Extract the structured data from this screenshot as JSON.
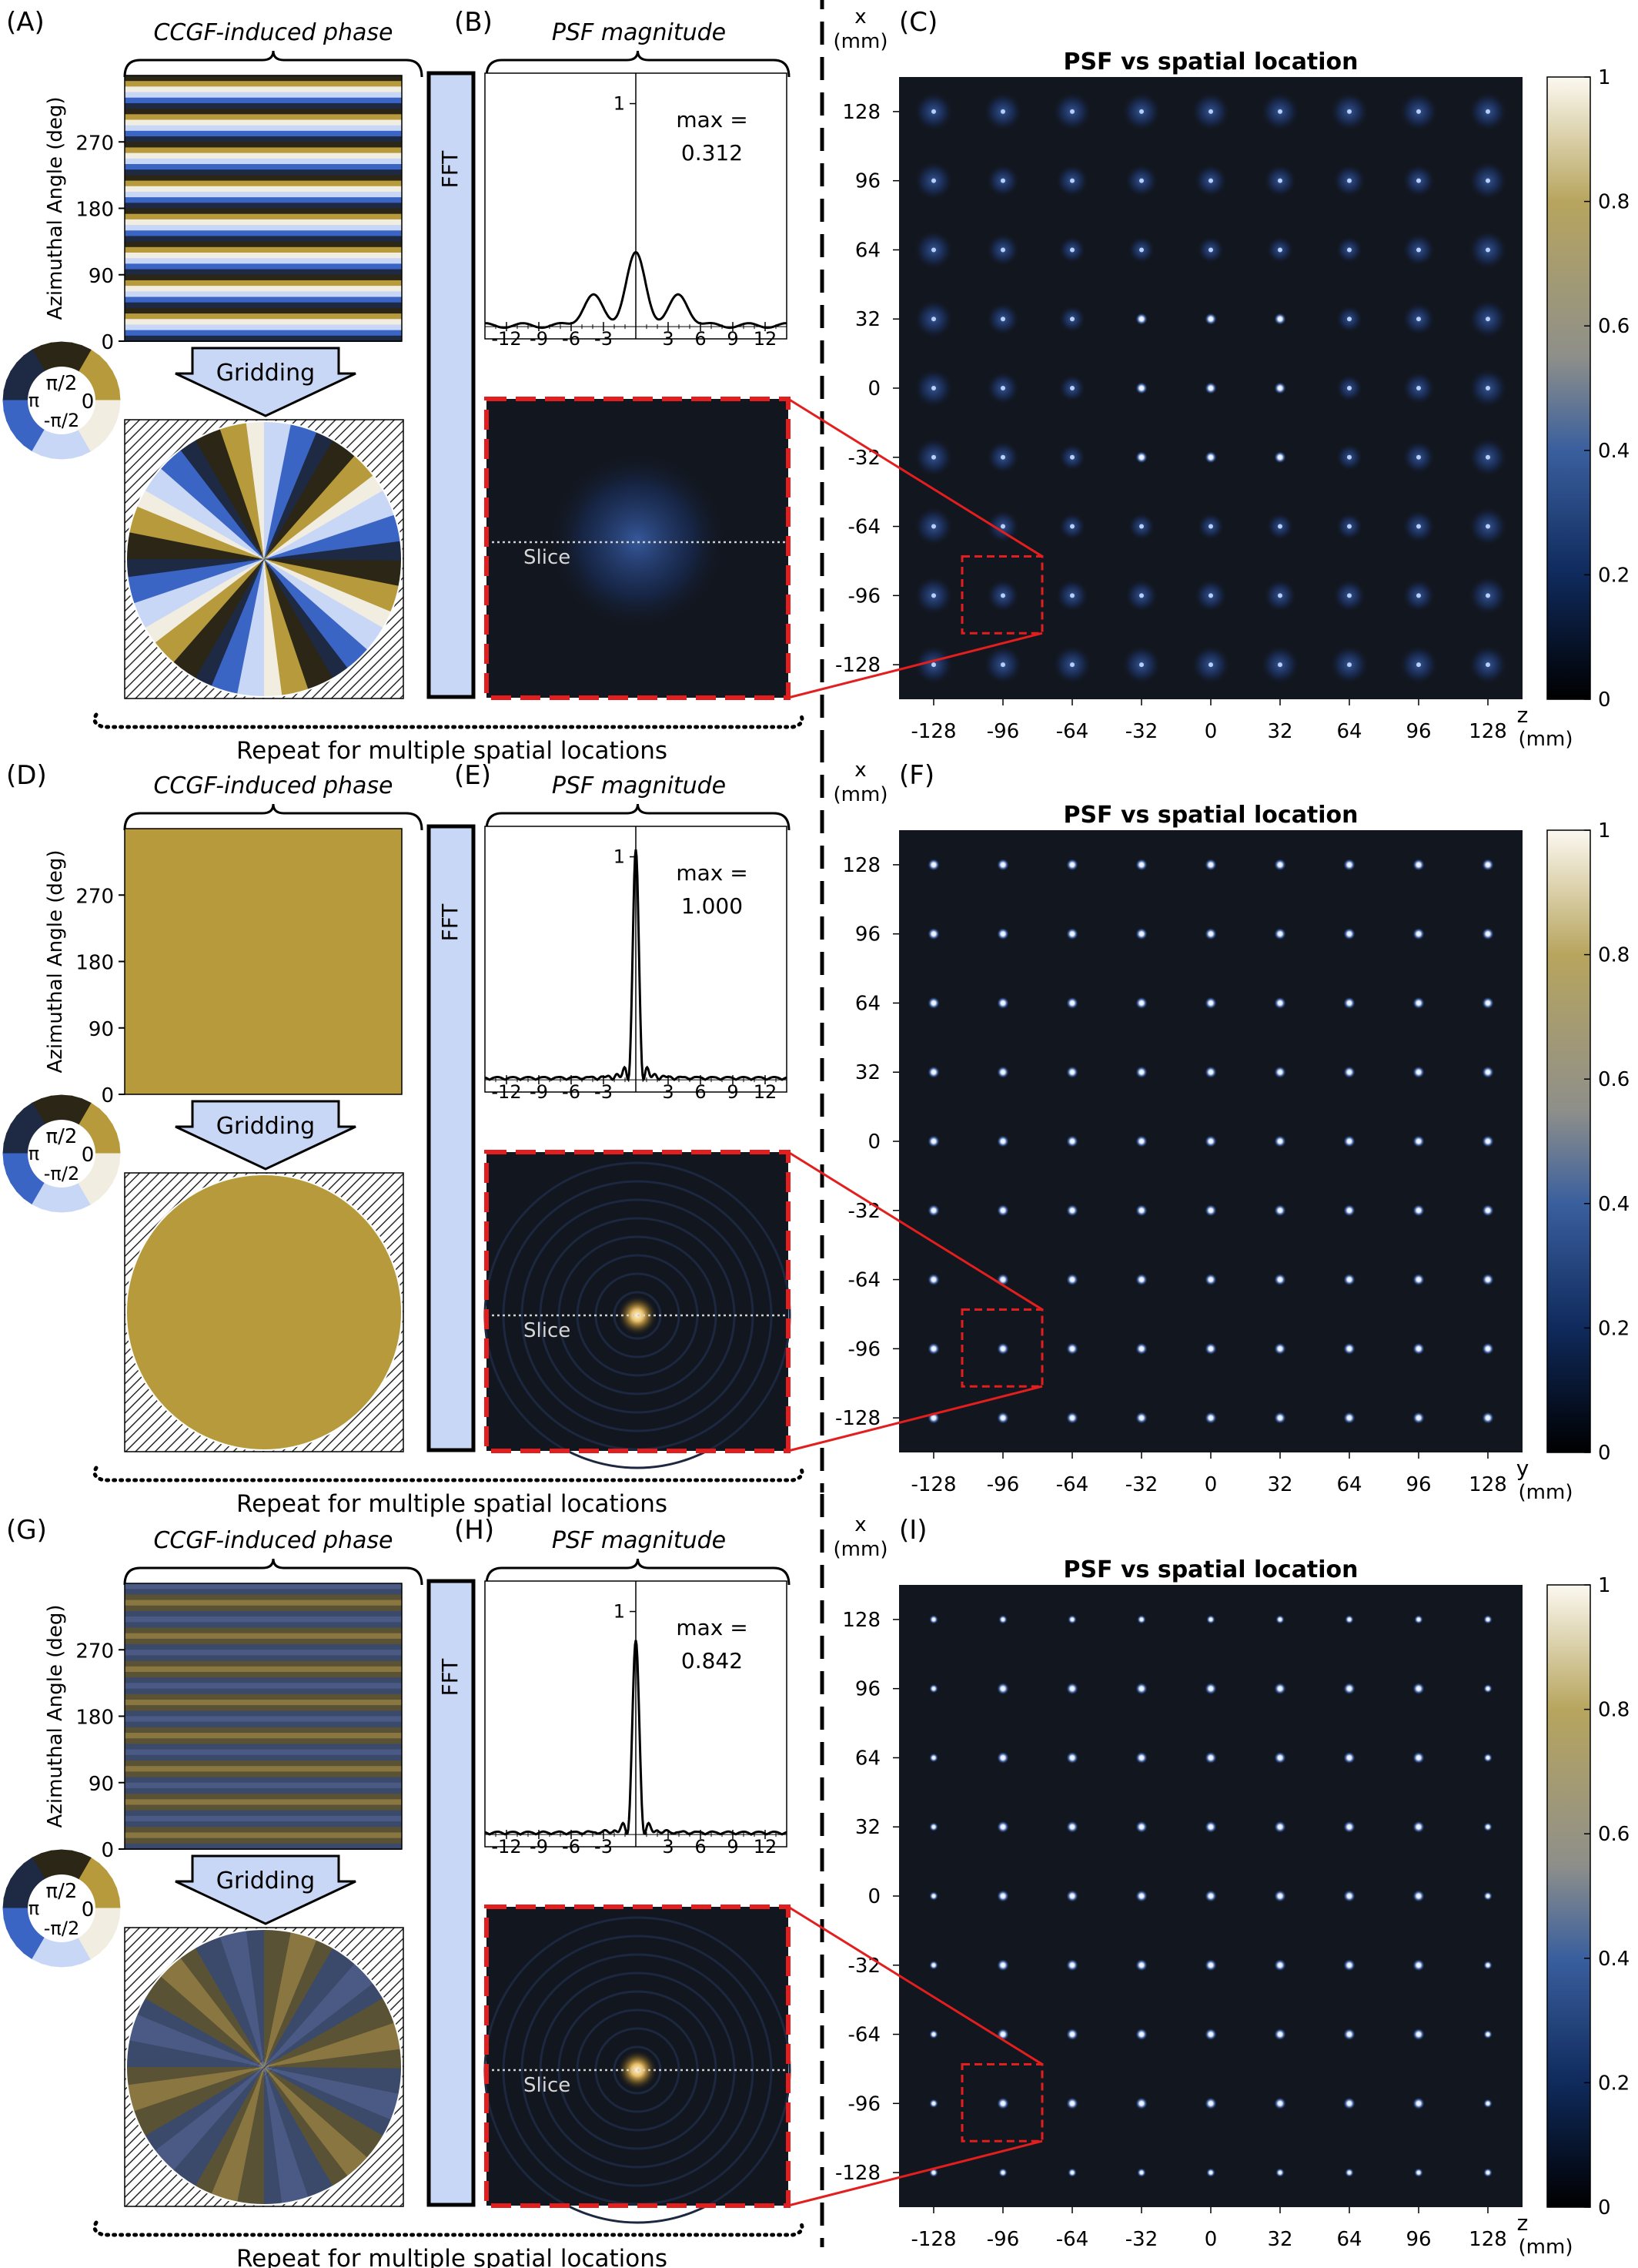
{
  "colors": {
    "blue_light": "#c9d7f7",
    "gold": "#b69a3c",
    "dark_bg": "#12161e",
    "psf_dot": "#ffffff",
    "red": "#e21e1e"
  },
  "text": {
    "phase_wheel": {
      "top": "π/2",
      "left": "π",
      "right": "0",
      "bottom": "-π/2"
    },
    "fft_label": "FFT",
    "gridding_label": "Gridding",
    "slice_label": "Slice",
    "azimuthal_label": "Azimuthal Angle (deg)",
    "repeat_label": "Repeat for multiple spatial locations",
    "max_prefix": "max =",
    "map_title": "PSF vs spatial location",
    "x_unit_top": "x",
    "mm": "(mm)"
  },
  "rows": [
    {
      "phase_title": "CCGF-induced phase",
      "psf_title": "PSF magnitude",
      "letters": [
        "(A)",
        "(B)",
        "(C)"
      ],
      "phase_style": "high_contrast",
      "max_value": "0.312",
      "map_horiz_label": "z",
      "map_horiz_unit": "(mm)",
      "map_style": "aberrated"
    },
    {
      "phase_title": "CCGF-induced phase",
      "psf_title": "PSF magnitude",
      "letters": [
        "(D)",
        "(E)",
        "(F)"
      ],
      "phase_style": "uniform",
      "max_value": "1.000",
      "map_horiz_label": "y",
      "map_horiz_unit": "(mm)",
      "map_style": "clean"
    },
    {
      "phase_title": "CCGF-induced phase",
      "psf_title": "PSF magnitude",
      "letters": [
        "(G)",
        "(H)",
        "(I)"
      ],
      "phase_style": "low_contrast",
      "max_value": "0.842",
      "map_horiz_label": "z",
      "map_horiz_unit": "(mm)",
      "map_style": "mild"
    }
  ],
  "chart_data": [
    {
      "type": "line",
      "title": "",
      "xticks": [
        "-12",
        "-9",
        "-6",
        "-3",
        "3",
        "6",
        "9",
        "12"
      ],
      "ytick": "1",
      "xlim": [
        -14,
        14
      ],
      "ylim": [
        0,
        1.1
      ],
      "series": [
        {
          "peak": 0.312,
          "side_lobes": [
            [
              -4,
              0.13
            ],
            [
              4,
              0.13
            ]
          ]
        }
      ]
    },
    {
      "type": "line",
      "title": "",
      "xticks": [
        "-12",
        "-9",
        "-6",
        "-3",
        "3",
        "6",
        "9",
        "12"
      ],
      "ytick": "1",
      "xlim": [
        -14,
        14
      ],
      "ylim": [
        0,
        1.1
      ],
      "series": [
        {
          "peak": 1.0,
          "side_lobes": []
        }
      ]
    },
    {
      "type": "line",
      "title": "",
      "xticks": [
        "-12",
        "-9",
        "-6",
        "-3",
        "3",
        "6",
        "9",
        "12"
      ],
      "ytick": "1",
      "xlim": [
        -14,
        14
      ],
      "ylim": [
        0,
        1.1
      ],
      "series": [
        {
          "peak": 0.842,
          "side_lobes": []
        }
      ]
    },
    {
      "type": "heatmap",
      "title": "PSF vs spatial location",
      "x_ticks": [
        "-128",
        "-96",
        "-64",
        "-32",
        "0",
        "32",
        "64",
        "96",
        "128"
      ],
      "y_ticks": [
        "128",
        "96",
        "64",
        "32",
        "0",
        "-32",
        "-64",
        "-96",
        "-128"
      ],
      "colorbar_ticks": [
        "1",
        "0.8",
        "0.6",
        "0.4",
        "0.2",
        "0"
      ]
    }
  ]
}
